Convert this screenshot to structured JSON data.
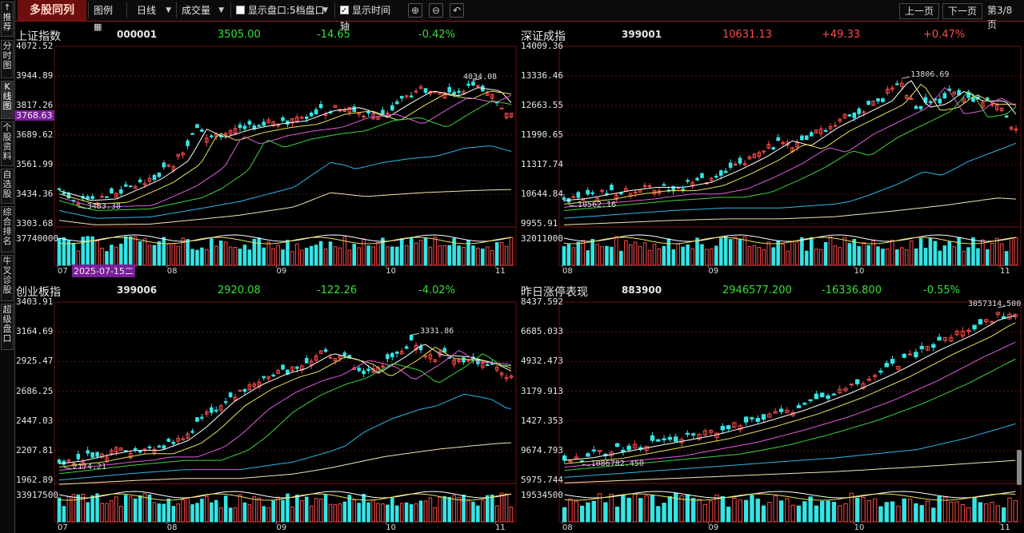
{
  "toolbar": {
    "title": "多股同列",
    "legend_label": "图例",
    "period": "日线",
    "indicator": "成交量",
    "show_book_label": "显示盘口:5档盘口",
    "show_book_checked": false,
    "show_time_axis_label": "显示时间轴",
    "show_time_axis_checked": true,
    "prev_page": "上一页",
    "next_page": "下一页",
    "page_info": "第3/8页"
  },
  "sidebar": {
    "tabs": [
      {
        "label": "推荐",
        "mark": "↑"
      },
      {
        "label": "分时图"
      },
      {
        "label": "K线图"
      },
      {
        "label": "个股资料"
      },
      {
        "label": "自选股"
      },
      {
        "label": "综合排名"
      },
      {
        "label": "牛叉诊股"
      },
      {
        "label": "超级盘口"
      }
    ]
  },
  "panels": [
    {
      "name": "上证指数",
      "code": "000001",
      "price": "3505.00",
      "change": "-14.65",
      "pct": "-0.42%",
      "trend": "down",
      "y_labels": [
        "4072.52",
        "3944.89",
        "3817.26",
        "3689.62",
        "3561.99",
        "3434.36",
        "3303.68"
      ],
      "current_tag": "3768.63",
      "vol_label": "37740000",
      "high_label": "4034.08",
      "low_label": "3483.38",
      "x_labels": [
        "07",
        "08",
        "09",
        "10",
        "11"
      ],
      "date_tag": "2025-07-15二",
      "chart_data": {
        "type": "candlestick",
        "series_close_start": 3483.38,
        "series_close_end": 3505.0,
        "high": 4034.08,
        "low": 3483.38,
        "ylim": [
          3303.68,
          4072.52
        ]
      }
    },
    {
      "name": "深证成指",
      "code": "399001",
      "price": "10631.13",
      "change": "+49.33",
      "pct": "+0.47%",
      "trend": "up",
      "y_labels": [
        "14009.36",
        "13336.46",
        "12663.55",
        "11990.65",
        "11317.74",
        "10644.84",
        "9955.91"
      ],
      "vol_label": "32011000",
      "high_label": "13806.69",
      "low_label": "10562.16",
      "x_labels": [
        "08",
        "09",
        "10",
        "11"
      ],
      "chart_data": {
        "type": "candlestick",
        "high": 13806.69,
        "low": 10562.16,
        "ylim": [
          9955.91,
          14009.36
        ]
      }
    },
    {
      "name": "创业板指",
      "code": "399006",
      "price": "2920.08",
      "change": "-122.26",
      "pct": "-4.02%",
      "trend": "down",
      "y_labels": [
        "3403.91",
        "3164.69",
        "2925.47",
        "2686.25",
        "2447.03",
        "2207.81",
        "1962.89"
      ],
      "vol_label": "33917500",
      "high_label": "3331.86",
      "low_label": "2174.21",
      "x_labels": [
        "07",
        "08",
        "09",
        "10",
        "11"
      ],
      "chart_data": {
        "type": "candlestick",
        "high": 3331.86,
        "low": 2174.21,
        "ylim": [
          1962.89,
          3403.91
        ]
      }
    },
    {
      "name": "昨日涨停表现",
      "code": "883900",
      "price": "2946577.200",
      "change": "-16336.800",
      "pct": "-0.55%",
      "trend": "down",
      "y_labels": [
        "8437.592",
        "6685.033",
        "4932.473",
        "3179.913",
        "1427.353",
        "9674.793",
        "5975.744"
      ],
      "vol_label": "19534500",
      "high_label": "3057314.500",
      "low_label": "1086782.450",
      "x_labels": [
        "08",
        "09",
        "10",
        "11"
      ],
      "chart_data": {
        "type": "candlestick",
        "high": 3057314.5,
        "low": 1086782.45
      }
    }
  ],
  "colors": {
    "up": "#ff4b4b",
    "down": "#35e5e5",
    "ma5": "#ffffff",
    "ma10": "#e8e05a",
    "ma20": "#e35bd8",
    "ma30": "#3cd43c",
    "ma60": "#2db6e6",
    "ma120": "#f0e6b0",
    "grid": "#5a0f0f"
  }
}
